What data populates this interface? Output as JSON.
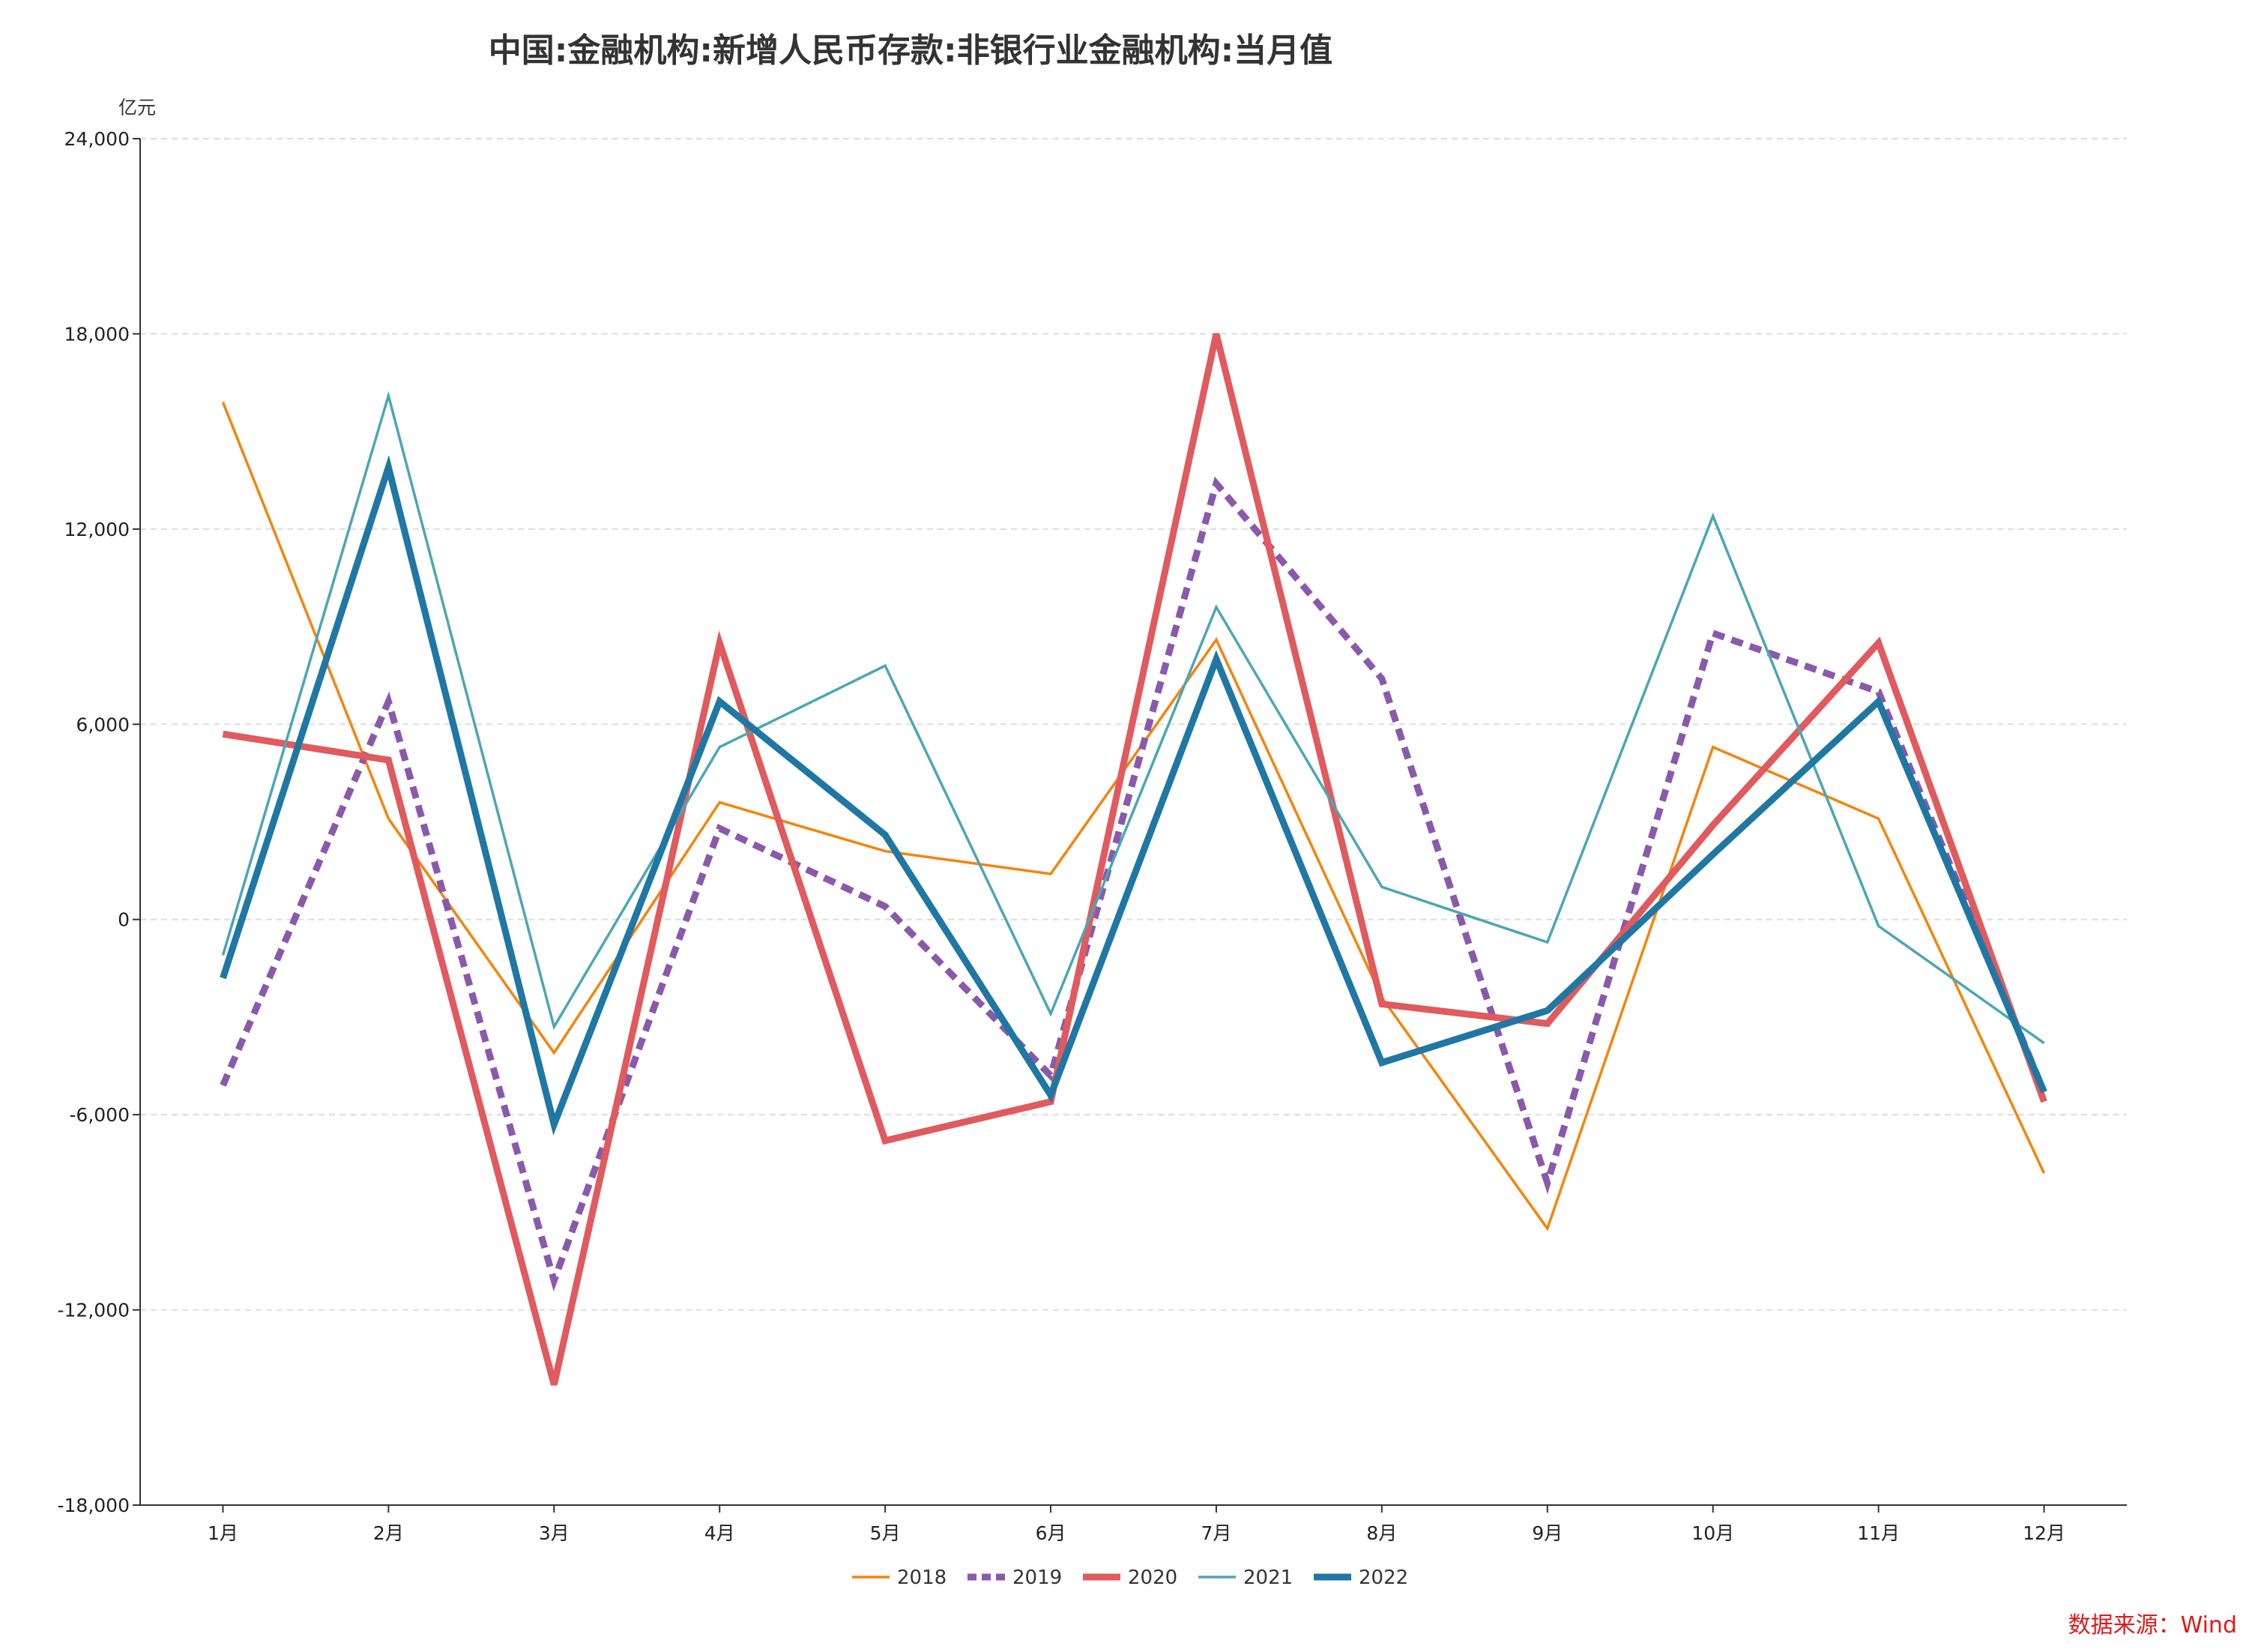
{
  "chart_data": {
    "type": "line",
    "title": "中国:金融机构:新增人民币存款:非银行业金融机构:当月值",
    "ylabel": "亿元",
    "xlabel": "",
    "ylim": [
      -18000,
      24000
    ],
    "yticks": [
      -18000,
      -12000,
      -6000,
      0,
      6000,
      12000,
      18000,
      24000
    ],
    "ytick_labels": [
      "-18,000",
      "-12,000",
      "-6,000",
      "0",
      "6,000",
      "12,000",
      "18,000",
      "24,000"
    ],
    "grid": true,
    "legend_position": "bottom-center",
    "categories": [
      "1月",
      "2月",
      "3月",
      "4月",
      "5月",
      "6月",
      "7月",
      "8月",
      "9月",
      "10月",
      "11月",
      "12月"
    ],
    "series": [
      {
        "name": "2018",
        "color": "#f5840c",
        "style": "thin",
        "values": [
          15900,
          3100,
          -4100,
          3600,
          2100,
          1400,
          8600,
          -2400,
          -9500,
          5300,
          3100,
          -7800
        ]
      },
      {
        "name": "2019",
        "color": "#8b59ac",
        "style": "dashed",
        "values": [
          -5100,
          6700,
          -11100,
          2800,
          400,
          -4800,
          13400,
          7400,
          -8100,
          8800,
          7000,
          -5300
        ]
      },
      {
        "name": "2020",
        "color": "#e05a5e",
        "style": "thick",
        "values": [
          5700,
          4900,
          -14300,
          8500,
          -6800,
          -5600,
          18000,
          -2600,
          -3200,
          2900,
          8500,
          -5600
        ]
      },
      {
        "name": "2021",
        "color": "#4ba6b6",
        "style": "thin",
        "values": [
          -1100,
          16100,
          -3300,
          5300,
          7800,
          -2900,
          9600,
          1000,
          -700,
          12400,
          -200,
          -3800
        ]
      },
      {
        "name": "2022",
        "color": "#1f77a4",
        "style": "thick",
        "values": [
          -1800,
          13900,
          -6300,
          6700,
          2600,
          -5400,
          8000,
          -4400,
          -2800,
          2000,
          6700,
          -5300
        ]
      }
    ],
    "source": "数据来源：Wind"
  }
}
